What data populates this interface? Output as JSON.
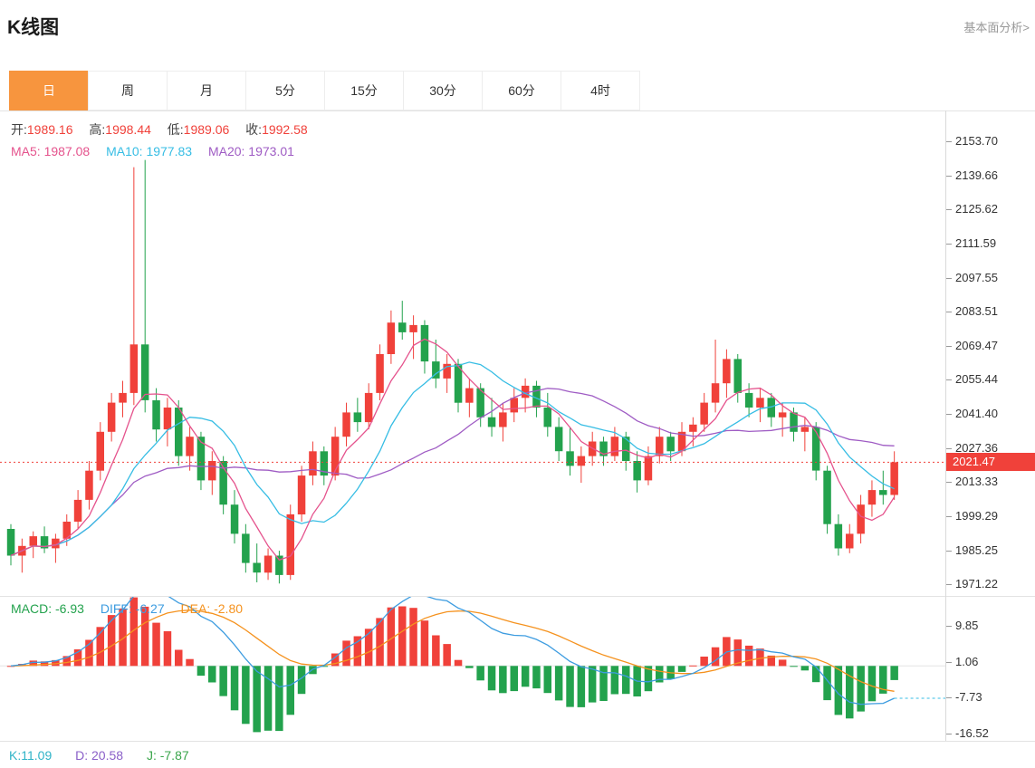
{
  "header": {
    "title": "K线图",
    "link_label": "基本面分析>"
  },
  "tabs": {
    "items": [
      {
        "label": "日",
        "active": true
      },
      {
        "label": "周",
        "active": false
      },
      {
        "label": "月",
        "active": false
      },
      {
        "label": "5分",
        "active": false
      },
      {
        "label": "15分",
        "active": false
      },
      {
        "label": "30分",
        "active": false
      },
      {
        "label": "60分",
        "active": false
      },
      {
        "label": "4时",
        "active": false
      }
    ]
  },
  "main_legend": {
    "open_label": "开:",
    "open_value": "1989.16",
    "high_label": "高:",
    "high_value": "1998.44",
    "low_label": "低:",
    "low_value": "1989.06",
    "close_label": "收:",
    "close_value": "1992.58",
    "ma5_label": "MA5:",
    "ma5_value": "1987.08",
    "ma10_label": "MA10:",
    "ma10_value": "1977.83",
    "ma20_label": "MA20:",
    "ma20_value": "1973.01"
  },
  "macd_legend": {
    "macd_label": "MACD:",
    "macd_value": "-6.93",
    "diff_label": "DIFF:",
    "diff_value": "-6.27",
    "dea_label": "DEA:",
    "dea_value": "-2.80"
  },
  "kdj_legend": {
    "k_label": "K:",
    "k_value": "11.09",
    "d_label": "D:",
    "d_value": "20.58",
    "j_label": "J:",
    "j_value": "-7.87"
  },
  "colors": {
    "up": "#f0413a",
    "down": "#23a24d",
    "ma5": "#e5538d",
    "ma10": "#36bde4",
    "ma20": "#9f5cc4",
    "diff": "#3d9ce0",
    "dea": "#f5921e",
    "accent": "#f7953e",
    "badge": "#f0413a",
    "k": "#2fb3c7",
    "d": "#8a5fc8",
    "j": "#3aa54b"
  },
  "chart_data": [
    {
      "type": "candlestick",
      "title": "K线图 (日K)",
      "last_price": 2021.47,
      "last_price_label": "2021.47",
      "y_axis": {
        "min": 1966.4,
        "max": 2166.0,
        "ticks": [
          "2153.70",
          "2139.66",
          "2125.62",
          "2111.59",
          "2097.55",
          "2083.51",
          "2069.47",
          "2055.44",
          "2041.40",
          "2027.36",
          "2013.33",
          "1999.29",
          "1985.25",
          "1971.22"
        ]
      },
      "overlays": [
        {
          "name": "MA5",
          "period": 5
        },
        {
          "name": "MA10",
          "period": 10
        },
        {
          "name": "MA20",
          "period": 20
        }
      ],
      "candles": [
        [
          1994,
          1996,
          1979,
          1983
        ],
        [
          1983,
          1990,
          1976,
          1987
        ],
        [
          1987,
          1993,
          1982,
          1991
        ],
        [
          1991,
          1995,
          1984,
          1986
        ],
        [
          1986,
          1992,
          1980,
          1990
        ],
        [
          1990,
          2000,
          1987,
          1997
        ],
        [
          1997,
          2010,
          1994,
          2006
        ],
        [
          2006,
          2022,
          2002,
          2018
        ],
        [
          2018,
          2038,
          2014,
          2034
        ],
        [
          2034,
          2050,
          2030,
          2046
        ],
        [
          2046,
          2055,
          2040,
          2050
        ],
        [
          2050,
          2143,
          2045,
          2070
        ],
        [
          2070,
          2146,
          2042,
          2047
        ],
        [
          2047,
          2052,
          2030,
          2035
        ],
        [
          2035,
          2048,
          2028,
          2044
        ],
        [
          2044,
          2047,
          2020,
          2024
        ],
        [
          2024,
          2036,
          2018,
          2032
        ],
        [
          2032,
          2034,
          2010,
          2014
        ],
        [
          2014,
          2026,
          2008,
          2022
        ],
        [
          2022,
          2024,
          2000,
          2004
        ],
        [
          2004,
          2010,
          1988,
          1992
        ],
        [
          1992,
          1996,
          1976,
          1980
        ],
        [
          1980,
          1988,
          1972,
          1976
        ],
        [
          1976,
          1986,
          1973,
          1983
        ],
        [
          1983,
          1985,
          1971.5,
          1975
        ],
        [
          1975,
          2004,
          1973,
          2000
        ],
        [
          2000,
          2020,
          1997,
          2016
        ],
        [
          2016,
          2030,
          2012,
          2026
        ],
        [
          2026,
          2028,
          2012,
          2016
        ],
        [
          2016,
          2036,
          2014,
          2032
        ],
        [
          2032,
          2046,
          2028,
          2042
        ],
        [
          2042,
          2048,
          2034,
          2038
        ],
        [
          2038,
          2054,
          2035,
          2050
        ],
        [
          2050,
          2070,
          2047,
          2066
        ],
        [
          2066,
          2084,
          2062,
          2079
        ],
        [
          2079,
          2088,
          2072,
          2075
        ],
        [
          2075,
          2082,
          2064,
          2078
        ],
        [
          2078,
          2080,
          2058,
          2063
        ],
        [
          2063,
          2072,
          2052,
          2056
        ],
        [
          2056,
          2066,
          2050,
          2062
        ],
        [
          2062,
          2064,
          2042,
          2046
        ],
        [
          2046,
          2056,
          2040,
          2052
        ],
        [
          2052,
          2054,
          2036,
          2040
        ],
        [
          2040,
          2048,
          2032,
          2036
        ],
        [
          2036,
          2046,
          2030,
          2042
        ],
        [
          2042,
          2052,
          2038,
          2048
        ],
        [
          2048,
          2056,
          2042,
          2053
        ],
        [
          2053,
          2055,
          2040,
          2044
        ],
        [
          2044,
          2050,
          2032,
          2036
        ],
        [
          2036,
          2040,
          2022,
          2026
        ],
        [
          2026,
          2036,
          2016,
          2020
        ],
        [
          2020,
          2028,
          2013,
          2024
        ],
        [
          2024,
          2034,
          2020,
          2030
        ],
        [
          2030,
          2032,
          2020,
          2024
        ],
        [
          2024,
          2036,
          2022,
          2032
        ],
        [
          2032,
          2034,
          2018,
          2022
        ],
        [
          2022,
          2026,
          2009,
          2014
        ],
        [
          2014,
          2028,
          2012,
          2024
        ],
        [
          2024,
          2036,
          2021,
          2032
        ],
        [
          2032,
          2034,
          2022,
          2026
        ],
        [
          2026,
          2038,
          2024,
          2034
        ],
        [
          2034,
          2040,
          2028,
          2037
        ],
        [
          2037,
          2050,
          2034,
          2046
        ],
        [
          2046,
          2072,
          2042,
          2054
        ],
        [
          2054,
          2068,
          2048,
          2064
        ],
        [
          2064,
          2066,
          2046,
          2050
        ],
        [
          2050,
          2054,
          2040,
          2044
        ],
        [
          2044,
          2052,
          2038,
          2048
        ],
        [
          2048,
          2050,
          2036,
          2040
        ],
        [
          2040,
          2046,
          2032,
          2042
        ],
        [
          2042,
          2044,
          2030,
          2034
        ],
        [
          2034,
          2040,
          2026,
          2036
        ],
        [
          2036,
          2038,
          2014,
          2018
        ],
        [
          2018,
          2020,
          1992,
          1996
        ],
        [
          1996,
          2000,
          1983,
          1986
        ],
        [
          1986,
          1996,
          1984,
          1992
        ],
        [
          1992,
          2008,
          1988,
          2004
        ],
        [
          2004,
          2014,
          1999,
          2010
        ],
        [
          2010,
          2018,
          2004,
          2008
        ],
        [
          2008,
          2026,
          2006,
          2021.47
        ]
      ]
    },
    {
      "type": "macd",
      "derived_from": "chart_data[0].candles closes; DIFF=EMA12-EMA26, DEA=EMA9(DIFF), bars=2*(DIFF-DEA)",
      "y_axis": {
        "min": -18.28,
        "max": 16.88,
        "ticks": [
          "9.85",
          "1.06",
          "-7.73",
          "-16.52"
        ]
      }
    }
  ]
}
